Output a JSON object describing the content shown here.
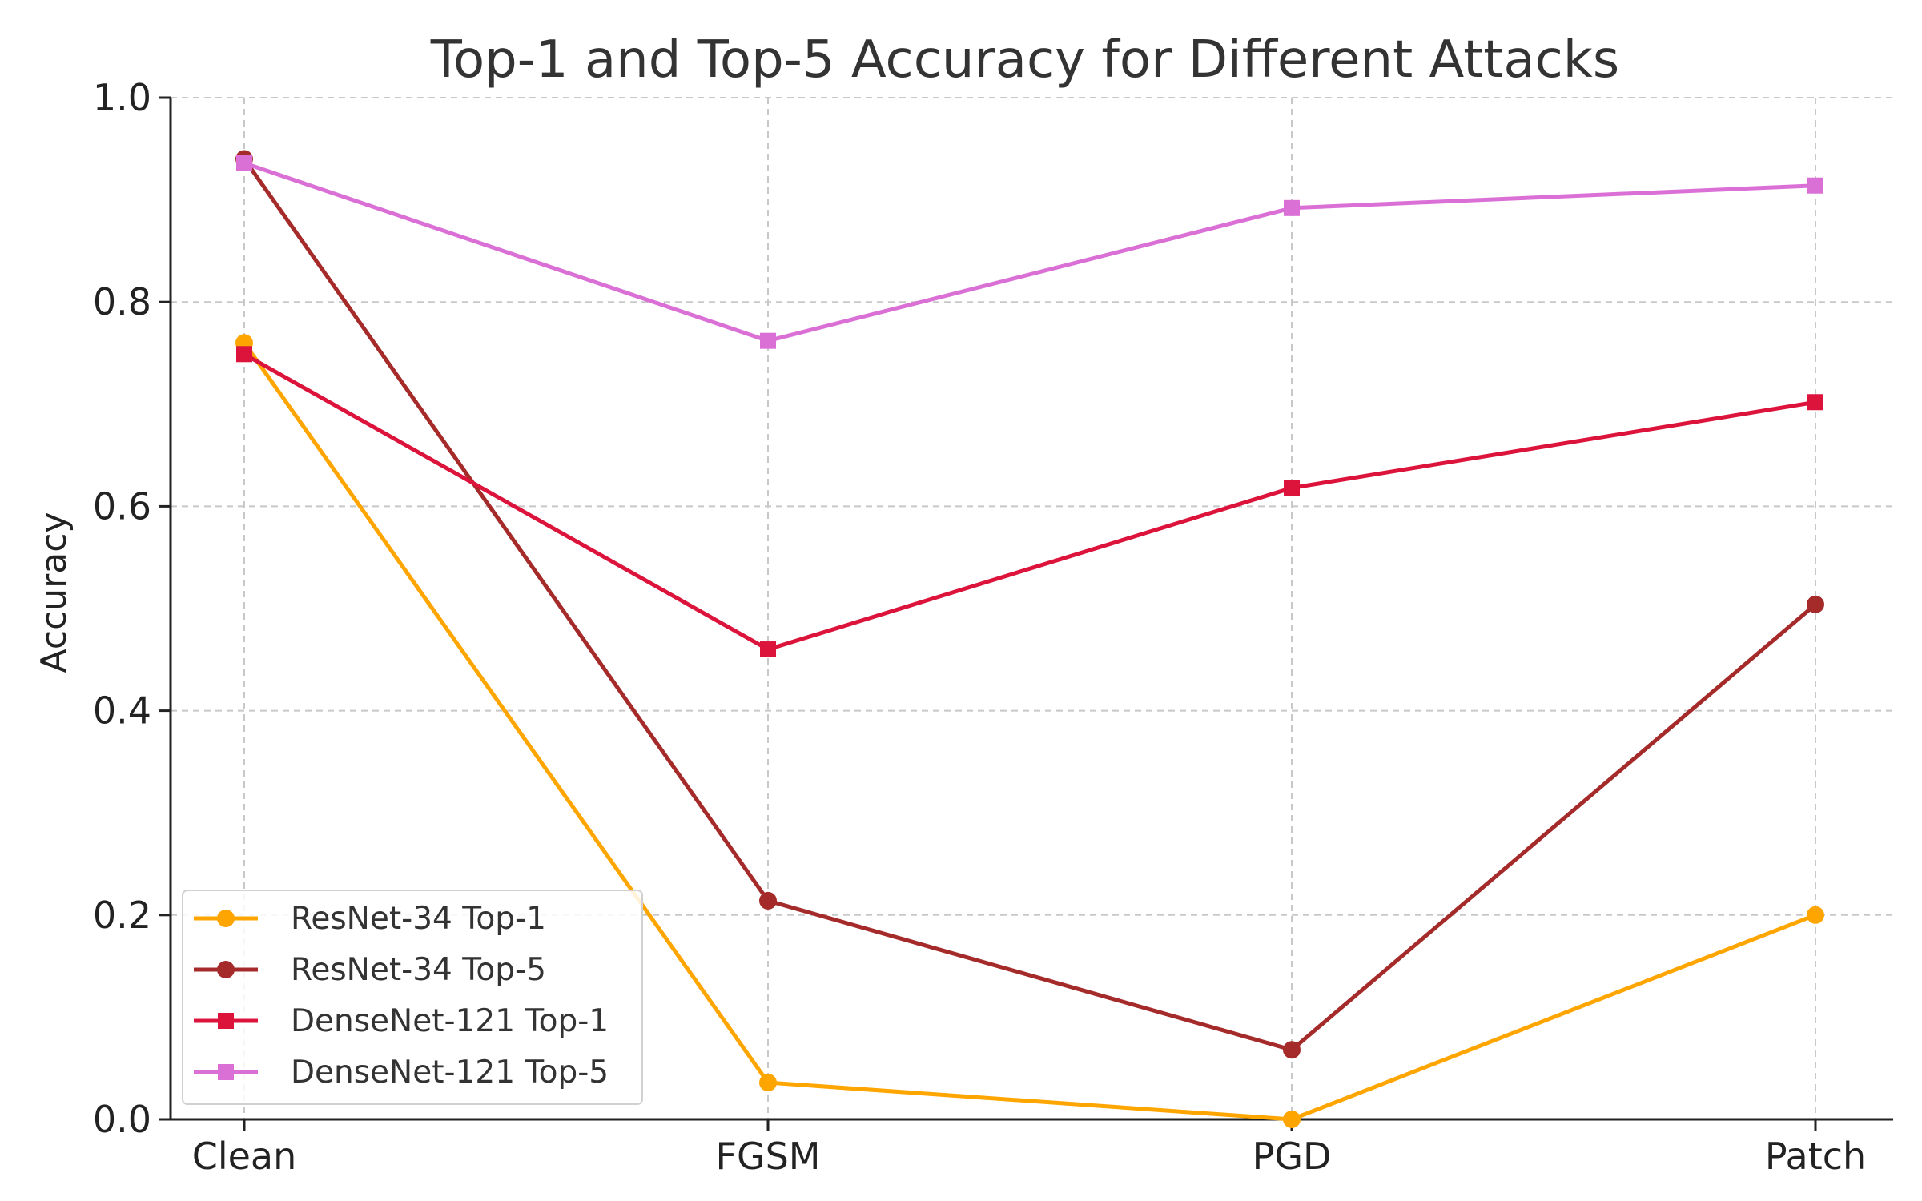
{
  "chart_data": {
    "type": "line",
    "title": "Top-1 and Top-5 Accuracy for Different Attacks",
    "xlabel": "",
    "ylabel": "Accuracy",
    "categories": [
      "Clean",
      "FGSM",
      "PGD",
      "Patch"
    ],
    "ylim": [
      0,
      1.0
    ],
    "yticks": [
      "0.0",
      "0.2",
      "0.4",
      "0.6",
      "0.8",
      "1.0"
    ],
    "grid": true,
    "legend_position": "lower-left",
    "series": [
      {
        "name": "ResNet-34 Top-1",
        "values": [
          0.76,
          0.036,
          0.0,
          0.2
        ],
        "color": "#ffa500",
        "marker": "circle"
      },
      {
        "name": "ResNet-34 Top-5",
        "values": [
          0.94,
          0.214,
          0.068,
          0.504
        ],
        "color": "#a52a2a",
        "marker": "circle"
      },
      {
        "name": "DenseNet-121 Top-1",
        "values": [
          0.749,
          0.46,
          0.618,
          0.702
        ],
        "color": "#dc143c",
        "marker": "square"
      },
      {
        "name": "DenseNet-121 Top-5",
        "values": [
          0.936,
          0.762,
          0.892,
          0.914
        ],
        "color": "#da70d6",
        "marker": "square"
      }
    ]
  }
}
